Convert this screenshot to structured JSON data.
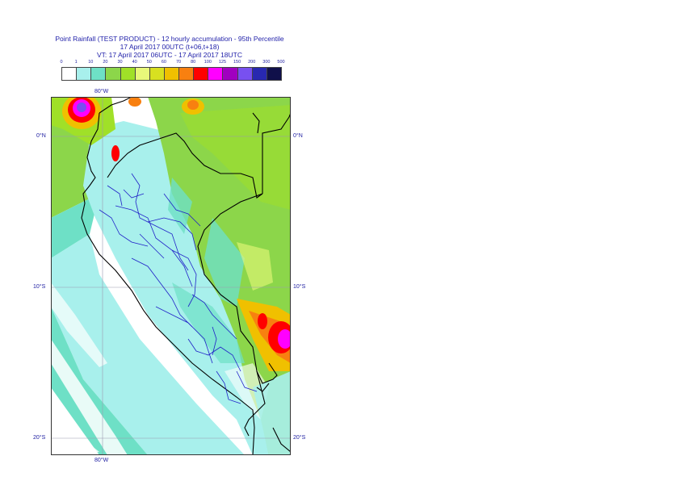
{
  "title": {
    "line1": "Point Rainfall (TEST PRODUCT) - 12 hourly accumulation - 95th Percentile",
    "line2": "17 April 2017 00UTC (t+06,t+18)",
    "line3": "VT: 17 April 2017 06UTC - 17 April 2017 18UTC"
  },
  "legend": {
    "ticks": [
      "0",
      "1",
      "10",
      "20",
      "30",
      "40",
      "50",
      "60",
      "70",
      "80",
      "100",
      "125",
      "150",
      "200",
      "300",
      "500"
    ],
    "colors": [
      "#ffffff",
      "#a8f0ec",
      "#6ee0c6",
      "#8cd64a",
      "#a0e028",
      "#e8f87a",
      "#d8e020",
      "#f0c000",
      "#f88010",
      "#ff0000",
      "#ff00ff",
      "#a000c0",
      "#7850f0",
      "#2828b0",
      "#10104a"
    ]
  },
  "map": {
    "lat_labels": {
      "n0": "0°N",
      "s10": "10°S",
      "s20": "20°S"
    },
    "lon_labels": {
      "w80_top": "80°W",
      "w80_bottom": "80°W"
    }
  }
}
